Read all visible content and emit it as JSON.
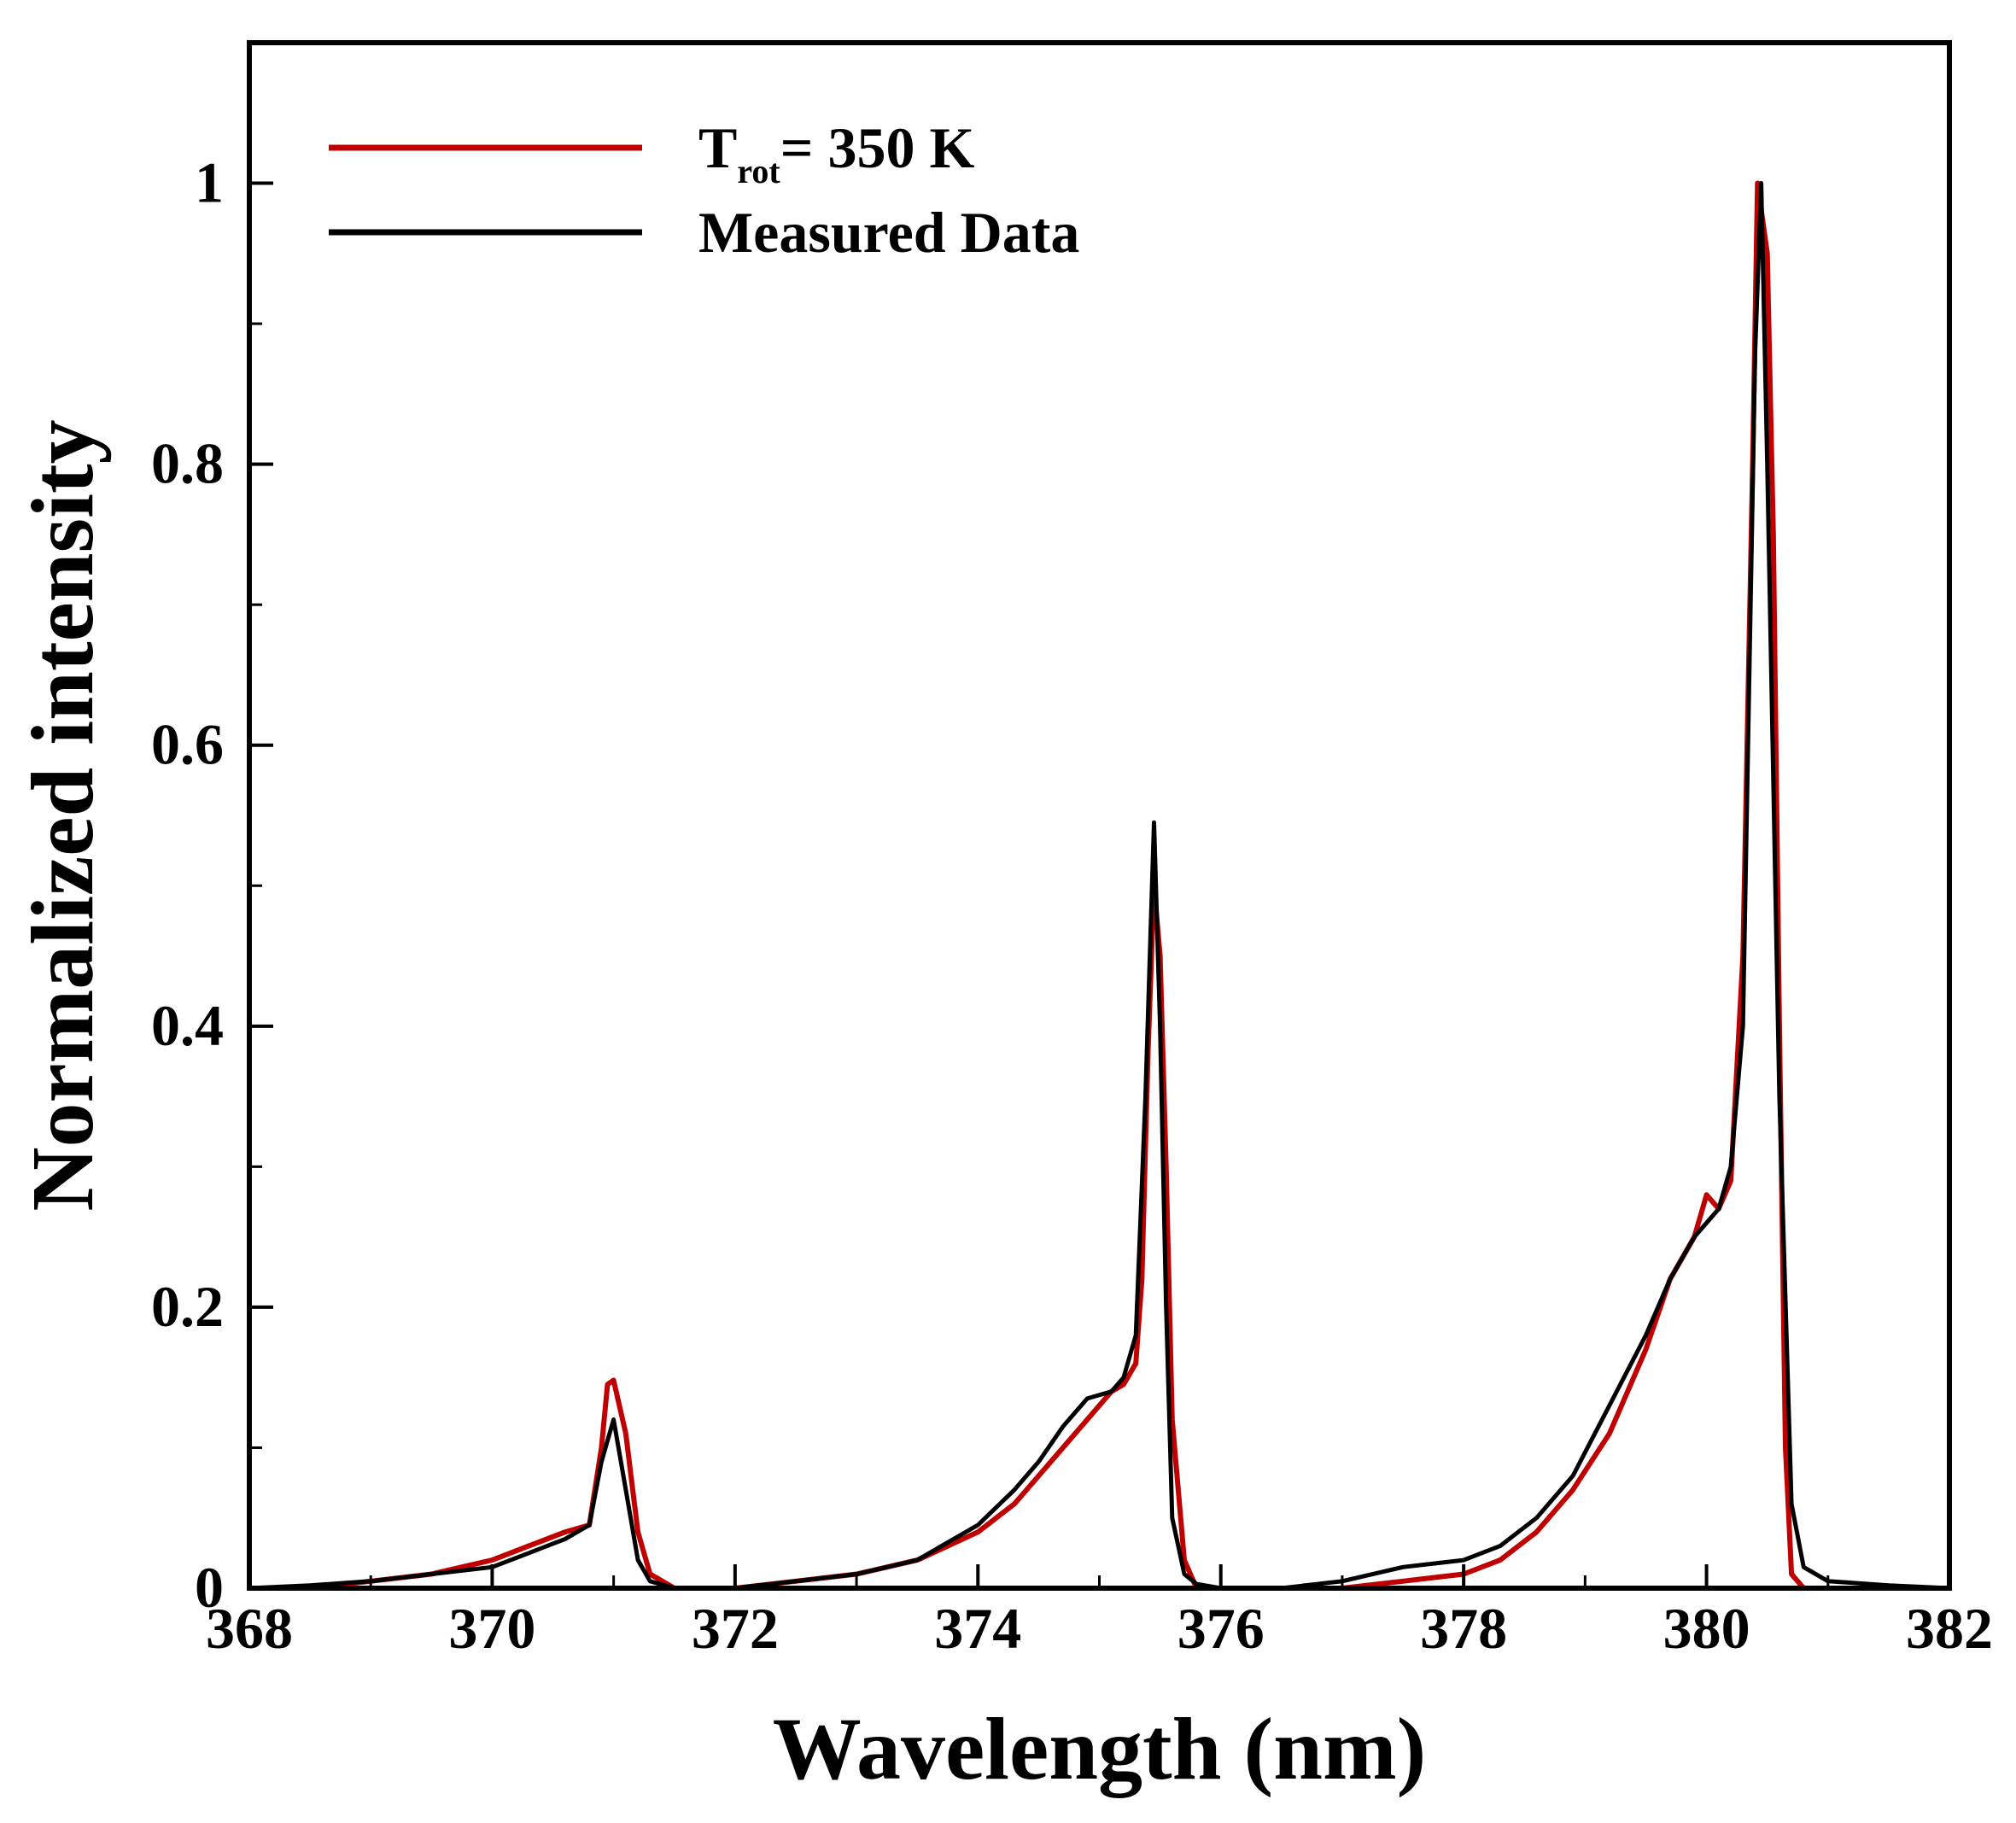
{
  "chart_data": {
    "type": "line",
    "title": "",
    "xlabel": "Wavelength (nm)",
    "ylabel": "Normalized intensity",
    "xlim": [
      368,
      382
    ],
    "ylim": [
      0,
      1.1
    ],
    "x_ticks": [
      368,
      370,
      372,
      374,
      376,
      378,
      380,
      382
    ],
    "x_tick_labels": [
      "368",
      "370",
      "372",
      "374",
      "376",
      "378",
      "380",
      "382"
    ],
    "y_ticks": [
      0,
      0.2,
      0.4,
      0.6,
      0.8,
      1
    ],
    "y_tick_labels": [
      "0",
      "0.2",
      "0.4",
      "0.6",
      "0.8",
      "1"
    ],
    "y_minor_ticks": [
      0.1,
      0.3,
      0.5,
      0.7,
      0.9
    ],
    "grid": false,
    "legend_position": "top-left",
    "legend": [
      {
        "main": "T",
        "sub": "rot",
        "rest": "= 350 K"
      },
      {
        "main": "Measured Data",
        "sub": "",
        "rest": ""
      }
    ],
    "series": [
      {
        "color": "#c00000",
        "x": [
          368.0,
          368.5,
          369.0,
          369.5,
          370.0,
          370.3,
          370.6,
          370.8,
          370.9,
          370.95,
          371.0,
          371.1,
          371.2,
          371.3,
          371.5,
          372.0,
          372.5,
          373.0,
          373.5,
          374.0,
          374.3,
          374.5,
          374.7,
          374.9,
          375.1,
          375.2,
          375.3,
          375.35,
          375.4,
          375.45,
          375.5,
          375.55,
          375.6,
          375.7,
          375.8,
          376.0,
          376.5,
          377.0,
          377.5,
          378.0,
          378.3,
          378.6,
          378.9,
          379.2,
          379.5,
          379.7,
          379.9,
          380.0,
          380.1,
          380.2,
          380.3,
          380.38,
          380.42,
          380.5,
          380.55,
          380.6,
          380.65,
          380.7,
          380.8,
          381.0,
          381.5,
          382.0
        ],
        "y": [
          0.0,
          0.0,
          0.005,
          0.01,
          0.02,
          0.03,
          0.04,
          0.045,
          0.1,
          0.145,
          0.148,
          0.11,
          0.04,
          0.01,
          0.0,
          0.0,
          0.005,
          0.01,
          0.02,
          0.04,
          0.06,
          0.08,
          0.1,
          0.12,
          0.14,
          0.145,
          0.16,
          0.22,
          0.38,
          0.5,
          0.45,
          0.3,
          0.12,
          0.02,
          0.0,
          0.0,
          0.0,
          0.0,
          0.005,
          0.01,
          0.02,
          0.04,
          0.07,
          0.11,
          0.17,
          0.22,
          0.25,
          0.28,
          0.27,
          0.29,
          0.45,
          0.8,
          1.0,
          0.95,
          0.75,
          0.4,
          0.1,
          0.01,
          0.0,
          0.0,
          0.0,
          0.0
        ]
      },
      {
        "color": "#000000",
        "x": [
          368.0,
          368.5,
          369.0,
          369.5,
          370.0,
          370.3,
          370.6,
          370.8,
          370.9,
          371.0,
          371.1,
          371.2,
          371.3,
          371.5,
          372.0,
          372.5,
          373.0,
          373.5,
          374.0,
          374.3,
          374.5,
          374.7,
          374.9,
          375.1,
          375.2,
          375.3,
          375.38,
          375.45,
          375.5,
          375.55,
          375.6,
          375.7,
          375.8,
          376.0,
          376.5,
          377.0,
          377.5,
          378.0,
          378.3,
          378.6,
          378.9,
          379.2,
          379.5,
          379.7,
          379.9,
          380.0,
          380.1,
          380.2,
          380.3,
          380.4,
          380.45,
          380.5,
          380.6,
          380.7,
          380.8,
          381.0,
          381.5,
          382.0
        ],
        "y": [
          0.0,
          0.002,
          0.005,
          0.01,
          0.015,
          0.025,
          0.035,
          0.045,
          0.09,
          0.12,
          0.07,
          0.02,
          0.005,
          0.0,
          0.0,
          0.005,
          0.01,
          0.02,
          0.045,
          0.07,
          0.09,
          0.115,
          0.135,
          0.14,
          0.15,
          0.18,
          0.35,
          0.545,
          0.4,
          0.2,
          0.05,
          0.01,
          0.003,
          0.0,
          0.0,
          0.005,
          0.015,
          0.02,
          0.03,
          0.05,
          0.08,
          0.13,
          0.18,
          0.22,
          0.25,
          0.26,
          0.27,
          0.3,
          0.4,
          0.88,
          1.0,
          0.8,
          0.35,
          0.06,
          0.015,
          0.005,
          0.002,
          0.0
        ]
      }
    ]
  }
}
